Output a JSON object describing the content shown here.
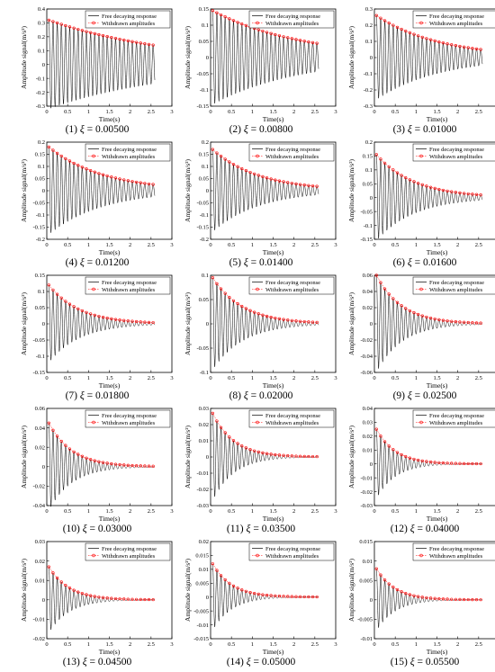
{
  "common": {
    "xlabel": "Time(s)",
    "ylabel": "Amplitude signal(m/s²)",
    "legend": [
      "Free decaying response",
      "Withdrawn amplitudes"
    ],
    "xlim": [
      0,
      3
    ],
    "xticks": [
      "0",
      "0.5",
      "1",
      "1.5",
      "2",
      "2.5",
      "3"
    ],
    "legend_position": "top-right"
  },
  "colors": {
    "response": "#000000",
    "amplitudes": "#ff0000"
  },
  "chart_data": [
    {
      "type": "line",
      "caption_index": "(1)",
      "caption_xi": "0.00500",
      "xi": 0.005,
      "ylim": [
        -0.3,
        0.4
      ],
      "yticks": [
        "-0.3",
        "-0.2",
        "-0.1",
        "0",
        "0.1",
        "0.2",
        "0.3",
        "0.4"
      ],
      "xlabel": "Time(s)",
      "ylabel": "Amplitude signal(m/s²)",
      "series": [
        {
          "name": "Free decaying response",
          "envelope_start": 0.32,
          "envelope_end": 0.14,
          "t_start": 0.05,
          "t_end": 2.55,
          "cycles": 26
        },
        {
          "name": "Withdrawn amplitudes",
          "x_start": 0.05,
          "x_end": 2.55,
          "y_start": 0.32,
          "y_end": 0.14,
          "count": 26
        }
      ]
    },
    {
      "type": "line",
      "caption_index": "(2)",
      "caption_xi": "0.00800",
      "xi": 0.008,
      "ylim": [
        -0.15,
        0.15
      ],
      "yticks": [
        "-0.15",
        "-0.1",
        "-0.05",
        "0",
        "0.05",
        "0.1",
        "0.15"
      ],
      "xlabel": "Time(s)",
      "ylabel": "Amplitude signal(m/s²)",
      "series": [
        {
          "name": "Free decaying response",
          "envelope_start": 0.145,
          "envelope_end": 0.044,
          "t_start": 0.05,
          "t_end": 2.55,
          "cycles": 26
        },
        {
          "name": "Withdrawn amplitudes",
          "x_start": 0.05,
          "x_end": 2.55,
          "y_start": 0.145,
          "y_end": 0.044,
          "count": 26
        }
      ]
    },
    {
      "type": "line",
      "caption_index": "(3)",
      "caption_xi": "0.01000",
      "xi": 0.01,
      "ylim": [
        -0.3,
        0.3
      ],
      "yticks": [
        "-0.3",
        "-0.2",
        "-0.1",
        "0",
        "0.1",
        "0.2",
        "0.3"
      ],
      "xlabel": "Time(s)",
      "ylabel": "Amplitude signal(m/s²)",
      "series": [
        {
          "name": "Free decaying response",
          "envelope_start": 0.26,
          "envelope_end": 0.05,
          "t_start": 0.05,
          "t_end": 2.55,
          "cycles": 26
        },
        {
          "name": "Withdrawn amplitudes",
          "x_start": 0.05,
          "x_end": 2.55,
          "y_start": 0.26,
          "y_end": 0.05,
          "count": 26
        }
      ]
    },
    {
      "type": "line",
      "caption_index": "(4)",
      "caption_xi": "0.01200",
      "xi": 0.012,
      "ylim": [
        -0.2,
        0.2
      ],
      "yticks": [
        "-0.2",
        "-0.15",
        "-0.1",
        "-0.05",
        "0",
        "0.05",
        "0.1",
        "0.15",
        "0.2"
      ],
      "xlabel": "Time(s)",
      "ylabel": "Amplitude signal(m/s²)",
      "series": [
        {
          "name": "Free decaying response",
          "envelope_start": 0.18,
          "envelope_end": 0.026,
          "t_start": 0.05,
          "t_end": 2.55,
          "cycles": 26
        },
        {
          "name": "Withdrawn amplitudes",
          "x_start": 0.05,
          "x_end": 2.55,
          "y_start": 0.18,
          "y_end": 0.026,
          "count": 26
        }
      ]
    },
    {
      "type": "line",
      "caption_index": "(5)",
      "caption_xi": "0.01400",
      "xi": 0.014,
      "ylim": [
        -0.2,
        0.2
      ],
      "yticks": [
        "-0.2",
        "-0.15",
        "-0.1",
        "-0.05",
        "0",
        "0.05",
        "0.1",
        "0.15",
        "0.2"
      ],
      "xlabel": "Time(s)",
      "ylabel": "Amplitude signal(m/s²)",
      "series": [
        {
          "name": "Free decaying response",
          "envelope_start": 0.17,
          "envelope_end": 0.018,
          "t_start": 0.05,
          "t_end": 2.55,
          "cycles": 26
        },
        {
          "name": "Withdrawn amplitudes",
          "x_start": 0.05,
          "x_end": 2.55,
          "y_start": 0.17,
          "y_end": 0.018,
          "count": 26
        }
      ]
    },
    {
      "type": "line",
      "caption_index": "(6)",
      "caption_xi": "0.01600",
      "xi": 0.016,
      "ylim": [
        -0.15,
        0.2
      ],
      "yticks": [
        "-0.15",
        "-0.1",
        "-0.05",
        "0",
        "0.05",
        "0.1",
        "0.15",
        "0.2"
      ],
      "xlabel": "Time(s)",
      "ylabel": "Amplitude signal(m/s²)",
      "series": [
        {
          "name": "Free decaying response",
          "envelope_start": 0.155,
          "envelope_end": 0.01,
          "t_start": 0.05,
          "t_end": 2.55,
          "cycles": 26
        },
        {
          "name": "Withdrawn amplitudes",
          "x_start": 0.05,
          "x_end": 2.55,
          "y_start": 0.155,
          "y_end": 0.01,
          "count": 26
        }
      ]
    },
    {
      "type": "line",
      "caption_index": "(7)",
      "caption_xi": "0.01800",
      "xi": 0.018,
      "ylim": [
        -0.15,
        0.15
      ],
      "yticks": [
        "-0.15",
        "-0.1",
        "-0.05",
        "0",
        "0.05",
        "0.1",
        "0.15"
      ],
      "xlabel": "Time(s)",
      "ylabel": "Amplitude signal(m/s²)",
      "series": [
        {
          "name": "Free decaying response",
          "envelope_start": 0.12,
          "envelope_end": 0.004,
          "t_start": 0.05,
          "t_end": 2.55,
          "cycles": 26
        },
        {
          "name": "Withdrawn amplitudes",
          "x_start": 0.05,
          "x_end": 2.55,
          "y_start": 0.12,
          "y_end": 0.004,
          "count": 26
        }
      ]
    },
    {
      "type": "line",
      "caption_index": "(8)",
      "caption_xi": "0.02000",
      "xi": 0.02,
      "ylim": [
        -0.1,
        0.1
      ],
      "yticks": [
        "-0.1",
        "-0.05",
        "0",
        "0.05",
        "0.1"
      ],
      "xlabel": "Time(s)",
      "ylabel": "Amplitude signal(m/s²)",
      "series": [
        {
          "name": "Free decaying response",
          "envelope_start": 0.095,
          "envelope_end": 0.003,
          "t_start": 0.05,
          "t_end": 2.55,
          "cycles": 26
        },
        {
          "name": "Withdrawn amplitudes",
          "x_start": 0.05,
          "x_end": 2.55,
          "y_start": 0.095,
          "y_end": 0.003,
          "count": 26
        }
      ]
    },
    {
      "type": "line",
      "caption_index": "(9)",
      "caption_xi": "0.02500",
      "xi": 0.025,
      "ylim": [
        -0.06,
        0.06
      ],
      "yticks": [
        "-0.06",
        "-0.04",
        "-0.02",
        "0",
        "0.02",
        "0.04",
        "0.06"
      ],
      "xlabel": "Time(s)",
      "ylabel": "Amplitude signal(m/s²)",
      "series": [
        {
          "name": "Free decaying response",
          "envelope_start": 0.06,
          "envelope_end": 0.001,
          "t_start": 0.05,
          "t_end": 2.55,
          "cycles": 26
        },
        {
          "name": "Withdrawn amplitudes",
          "x_start": 0.05,
          "x_end": 2.55,
          "y_start": 0.06,
          "y_end": 0.001,
          "count": 26
        }
      ]
    },
    {
      "type": "line",
      "caption_index": "(10)",
      "caption_xi": "0.03000",
      "xi": 0.03,
      "ylim": [
        -0.04,
        0.06
      ],
      "yticks": [
        "-0.04",
        "-0.02",
        "0",
        "0.02",
        "0.04",
        "0.06"
      ],
      "xlabel": "Time(s)",
      "ylabel": "Amplitude signal(m/s²)",
      "series": [
        {
          "name": "Free decaying response",
          "envelope_start": 0.045,
          "envelope_end": 0.0005,
          "t_start": 0.05,
          "t_end": 2.55,
          "cycles": 26
        },
        {
          "name": "Withdrawn amplitudes",
          "x_start": 0.05,
          "x_end": 2.55,
          "y_start": 0.045,
          "y_end": 0.0005,
          "count": 26
        }
      ]
    },
    {
      "type": "line",
      "caption_index": "(11)",
      "caption_xi": "0.03500",
      "xi": 0.035,
      "ylim": [
        -0.03,
        0.03
      ],
      "yticks": [
        "-0.03",
        "-0.02",
        "-0.01",
        "0",
        "0.01",
        "0.02",
        "0.03"
      ],
      "xlabel": "Time(s)",
      "ylabel": "Amplitude signal(m/s²)",
      "series": [
        {
          "name": "Free decaying response",
          "envelope_start": 0.027,
          "envelope_end": 0.0002,
          "t_start": 0.05,
          "t_end": 2.55,
          "cycles": 26
        },
        {
          "name": "Withdrawn amplitudes",
          "x_start": 0.05,
          "x_end": 2.55,
          "y_start": 0.027,
          "y_end": 0.0002,
          "count": 26
        }
      ]
    },
    {
      "type": "line",
      "caption_index": "(12)",
      "caption_xi": "0.04000",
      "xi": 0.04,
      "ylim": [
        -0.03,
        0.04
      ],
      "yticks": [
        "-0.03",
        "-0.02",
        "-0.01",
        "0",
        "0.01",
        "0.02",
        "0.03",
        "0.04"
      ],
      "xlabel": "Time(s)",
      "ylabel": "Amplitude signal(m/s²)",
      "series": [
        {
          "name": "Free decaying response",
          "envelope_start": 0.025,
          "envelope_end": 0.0001,
          "t_start": 0.05,
          "t_end": 2.55,
          "cycles": 26
        },
        {
          "name": "Withdrawn amplitudes",
          "x_start": 0.05,
          "x_end": 2.55,
          "y_start": 0.025,
          "y_end": 0.0001,
          "count": 26
        }
      ]
    },
    {
      "type": "line",
      "caption_index": "(13)",
      "caption_xi": "0.04500",
      "xi": 0.045,
      "ylim": [
        -0.02,
        0.03
      ],
      "yticks": [
        "-0.02",
        "-0.01",
        "0",
        "0.01",
        "0.02",
        "0.03"
      ],
      "xlabel": "Time(s)",
      "ylabel": "Amplitude signal(m/s²)",
      "series": [
        {
          "name": "Free decaying response",
          "envelope_start": 0.017,
          "envelope_end": 0.0001,
          "t_start": 0.05,
          "t_end": 2.55,
          "cycles": 26
        },
        {
          "name": "Withdrawn amplitudes",
          "x_start": 0.05,
          "x_end": 2.55,
          "y_start": 0.017,
          "y_end": 0.0001,
          "count": 26
        }
      ]
    },
    {
      "type": "line",
      "caption_index": "(14)",
      "caption_xi": "0.05000",
      "xi": 0.05,
      "ylim": [
        -0.015,
        0.02
      ],
      "yticks": [
        "-0.015",
        "-0.01",
        "-0.005",
        "0",
        "0.005",
        "0.01",
        "0.015",
        "0.02"
      ],
      "xlabel": "Time(s)",
      "ylabel": "Amplitude signal(m/s²)",
      "series": [
        {
          "name": "Free decaying response",
          "envelope_start": 0.012,
          "envelope_end": 5e-05,
          "t_start": 0.05,
          "t_end": 2.55,
          "cycles": 26
        },
        {
          "name": "Withdrawn amplitudes",
          "x_start": 0.05,
          "x_end": 2.55,
          "y_start": 0.012,
          "y_end": 5e-05,
          "count": 26
        }
      ]
    },
    {
      "type": "line",
      "caption_index": "(15)",
      "caption_xi": "0.05500",
      "xi": 0.055,
      "ylim": [
        -0.01,
        0.015
      ],
      "yticks": [
        "-0.01",
        "-0.005",
        "0",
        "0.005",
        "0.01",
        "0.015"
      ],
      "xlabel": "Time(s)",
      "ylabel": "Amplitude signal(m/s²)",
      "series": [
        {
          "name": "Free decaying response",
          "envelope_start": 0.008,
          "envelope_end": 3e-05,
          "t_start": 0.05,
          "t_end": 2.55,
          "cycles": 26
        },
        {
          "name": "Withdrawn amplitudes",
          "x_start": 0.05,
          "x_end": 2.55,
          "y_start": 0.008,
          "y_end": 3e-05,
          "count": 26
        }
      ]
    }
  ]
}
